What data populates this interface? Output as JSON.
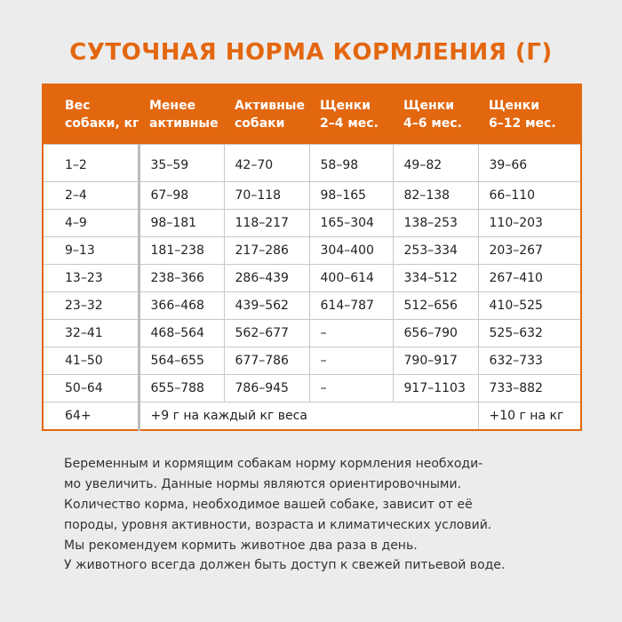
{
  "title": "СУТОЧНАЯ НОРМА КОРМЛЕНИЯ (Г)",
  "table": {
    "header": [
      [
        "Вес",
        "собаки, кг"
      ],
      [
        "Менее",
        "активные"
      ],
      [
        "Активные",
        "собаки"
      ],
      [
        "Щенки",
        "2–4 мес."
      ],
      [
        "Щенки",
        "4–6 мес."
      ],
      [
        "Щенки",
        "6–12 мес."
      ]
    ],
    "rows": [
      [
        "1–2",
        "35–59",
        "42–70",
        "58–98",
        "49–82",
        "39–66"
      ],
      [
        "2–4",
        "67–98",
        "70–118",
        "98–165",
        "82–138",
        "66–110"
      ],
      [
        "4–9",
        "98–181",
        "118–217",
        "165–304",
        "138–253",
        "110–203"
      ],
      [
        "9–13",
        "181–238",
        "217–286",
        "304–400",
        "253–334",
        "203–267"
      ],
      [
        "13–23",
        "238–366",
        "286–439",
        "400–614",
        "334–512",
        "267–410"
      ],
      [
        "23–32",
        "366–468",
        "439–562",
        "614–787",
        "512–656",
        "410–525"
      ],
      [
        "32–41",
        "468–564",
        "562–677",
        "–",
        "656–790",
        "525–632"
      ],
      [
        "41–50",
        "564–655",
        "677–786",
        "–",
        "790–917",
        "632–733"
      ],
      [
        "50–64",
        "655–788",
        "786–945",
        "–",
        "917–1103",
        "733–882"
      ]
    ],
    "last_row": {
      "weight": "64+",
      "adult": "+9 г на каждый кг веса",
      "puppy": "+10 г на кг"
    }
  },
  "paragraphs": [
    [
      "Беременным и кормящим собакам норму кормления необходи-",
      "мо увеличить. Данные нормы являются ориентировочными.",
      "Количество корма, необходимое вашей собаке, зависит от её",
      "породы, уровня активности, возраста и климатических условий.",
      "Мы рекомендуем кормить животное два раза в день."
    ],
    [
      "У животного всегда должен быть доступ к свежей питьевой воде."
    ]
  ]
}
